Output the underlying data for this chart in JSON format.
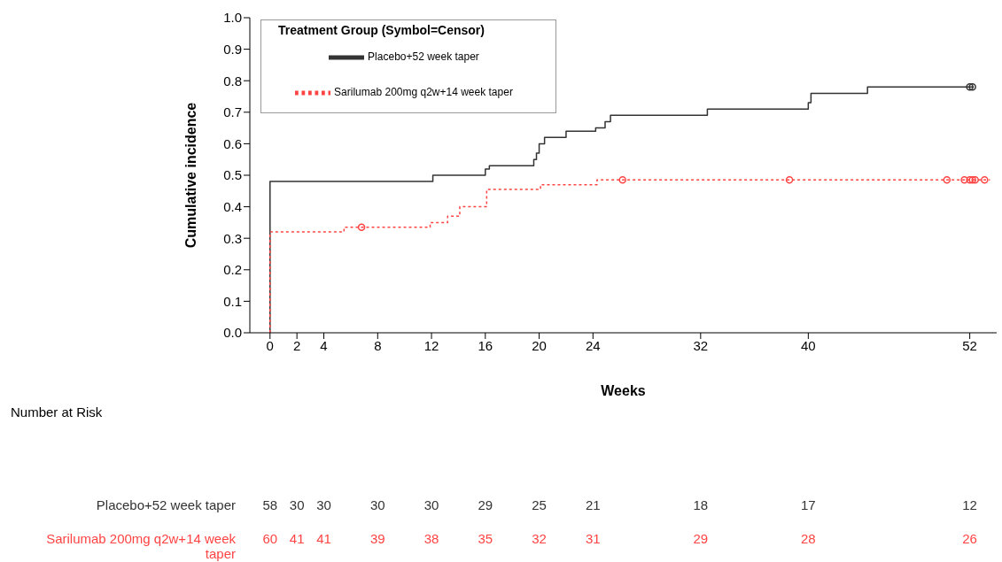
{
  "chart_data": {
    "type": "step",
    "ylabel": "Cumulative incidence",
    "xlabel": "Weeks",
    "legend_title": "Treatment Group (Symbol=Censor)",
    "legend": "top left",
    "xlim": [
      -1.5,
      54
    ],
    "xticks": [
      0,
      2,
      4,
      8,
      12,
      16,
      20,
      24,
      32,
      40,
      52
    ],
    "ylim": [
      0,
      1
    ],
    "yticks": [
      {
        "value": 0,
        "label": "0.0"
      },
      {
        "value": 0.1,
        "label": "0.1"
      },
      {
        "value": 0.2,
        "label": "0.2"
      },
      {
        "value": 0.3,
        "label": "0.3"
      },
      {
        "value": 0.4,
        "label": "0.4"
      },
      {
        "value": 0.5,
        "label": "0.5"
      },
      {
        "value": 0.6,
        "label": "0.6"
      },
      {
        "value": 0.7,
        "label": "0.7"
      },
      {
        "value": 0.8,
        "label": "0.8"
      },
      {
        "value": 0.9,
        "label": "0.9"
      },
      {
        "value": 1,
        "label": "1.0"
      }
    ],
    "series": [
      {
        "name": "Placebo+52 week taper",
        "color": "#333333",
        "line_style": "solid",
        "x": [
          0,
          0,
          12.1,
          16,
          16.3,
          19.6,
          19.8,
          20,
          20.4,
          22,
          24.2,
          24.9,
          25.3,
          32.5,
          40,
          40.2,
          44.4,
          52.3
        ],
        "values": [
          0,
          0.48,
          0.5,
          0.52,
          0.53,
          0.55,
          0.57,
          0.6,
          0.62,
          0.64,
          0.65,
          0.67,
          0.69,
          0.71,
          0.73,
          0.76,
          0.78,
          0.78
        ]
      },
      {
        "name": "Sarilumab 200mg q2w+14 week taper",
        "color": "#ff4444",
        "line_style": "dotted",
        "x": [
          0,
          0,
          5.5,
          11.9,
          13.2,
          14.1,
          16.1,
          20.1,
          24.3,
          53.5
        ],
        "values": [
          0,
          0.32,
          0.335,
          0.35,
          0.37,
          0.4,
          0.455,
          0.47,
          0.485,
          0.485
        ]
      },
      {
        "type": "scatter",
        "marker": "circle",
        "color": "#333333",
        "x": [
          52,
          52.2
        ],
        "values": [
          0.78,
          0.78
        ]
      },
      {
        "type": "scatter",
        "marker": "circle",
        "color": "#ff4444",
        "x": [
          6.8,
          26.2,
          38.6,
          50.3,
          51.6,
          52,
          52.2,
          52.4,
          53.1
        ],
        "values": [
          0.335,
          0.485,
          0.485,
          0.485,
          0.485,
          0.485,
          0.485,
          0.485,
          0.485
        ]
      }
    ],
    "annotations": [
      "Number at Risk",
      "58",
      "30",
      "30",
      "30",
      "30",
      "29",
      "25",
      "21",
      "18",
      "17",
      "12",
      "60",
      "41",
      "41",
      "39",
      "38",
      "35",
      "32",
      "31",
      "29",
      "28",
      "26"
    ]
  }
}
